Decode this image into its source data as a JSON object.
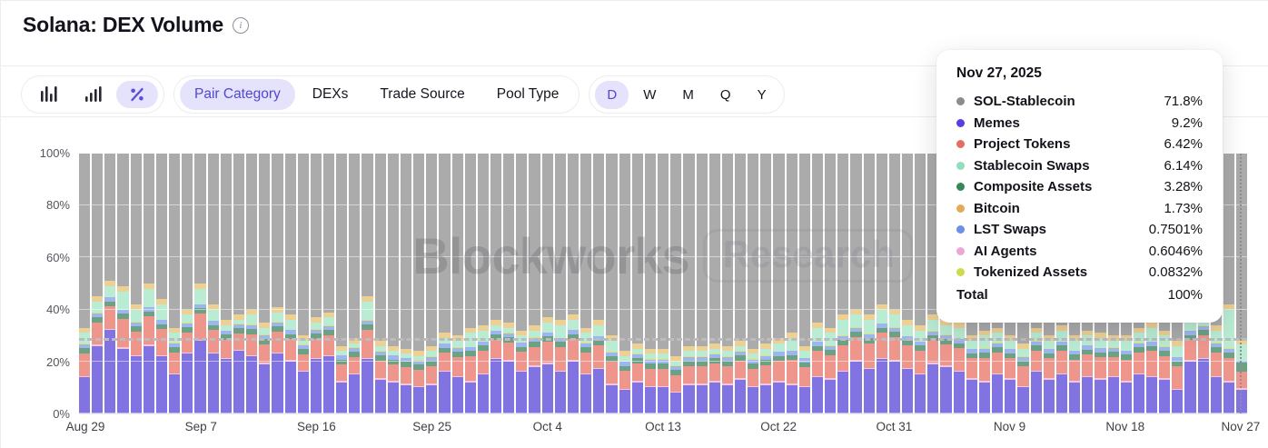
{
  "header": {
    "title": "Solana: DEX Volume"
  },
  "icons": {
    "info_glyph": "i"
  },
  "toolbar": {
    "chart_type_buttons": [
      {
        "name": "bar-chart-icon",
        "selected": false
      },
      {
        "name": "ascending-bar-chart-icon",
        "selected": false
      },
      {
        "name": "percent-icon",
        "selected": true
      }
    ],
    "category_tabs": [
      {
        "label": "Pair Category",
        "selected": true
      },
      {
        "label": "DEXs",
        "selected": false
      },
      {
        "label": "Trade Source",
        "selected": false
      },
      {
        "label": "Pool Type",
        "selected": false
      }
    ],
    "range_tabs": [
      {
        "label": "D",
        "selected": true
      },
      {
        "label": "W",
        "selected": false
      },
      {
        "label": "M",
        "selected": false
      },
      {
        "label": "Q",
        "selected": false
      },
      {
        "label": "Y",
        "selected": false
      }
    ]
  },
  "watermark": {
    "brand": "Blockworks",
    "suffix": "Research"
  },
  "tooltip": {
    "date": "Nov 27, 2025",
    "rows": [
      {
        "label": "SOL-Stablecoin",
        "value": "71.8%",
        "color": "#8c8c8c"
      },
      {
        "label": "Memes",
        "value": "9.2%",
        "color": "#5b3de2"
      },
      {
        "label": "Project Tokens",
        "value": "6.42%",
        "color": "#e56e60"
      },
      {
        "label": "Stablecoin Swaps",
        "value": "6.14%",
        "color": "#8fe0ba"
      },
      {
        "label": "Composite Assets",
        "value": "3.28%",
        "color": "#378859"
      },
      {
        "label": "Bitcoin",
        "value": "1.73%",
        "color": "#e3ab55"
      },
      {
        "label": "LST Swaps",
        "value": "0.7501%",
        "color": "#6b90e8"
      },
      {
        "label": "AI Agents",
        "value": "0.6046%",
        "color": "#eaa8d4"
      },
      {
        "label": "Tokenized Assets",
        "value": "0.0832%",
        "color": "#ccdb4c"
      }
    ],
    "total_label": "Total",
    "total_value": "100%"
  },
  "chart_data": {
    "type": "bar",
    "stacked": true,
    "percent_normalized": true,
    "title": "Solana: DEX Volume — share by Pair Category (daily)",
    "ylim": [
      0,
      100
    ],
    "y_ticks": [
      "100%",
      "80%",
      "60%",
      "40%",
      "20%",
      "0%"
    ],
    "x_ticks": [
      "Aug 29",
      "Sep 7",
      "Sep 16",
      "Sep 25",
      "Oct 4",
      "Oct 13",
      "Oct 22",
      "Oct 31",
      "Nov 9",
      "Nov 18",
      "Nov 27"
    ],
    "x_tick_bar_indices": [
      0,
      9,
      18,
      27,
      36,
      45,
      54,
      63,
      72,
      81,
      90
    ],
    "average_reference_line_pct": 28,
    "grid": true,
    "legend_position": "tooltip",
    "series": [
      {
        "name": "Memes",
        "bar_color": "#8273e3",
        "legend_color": "#5b3de2"
      },
      {
        "name": "AI Agents",
        "bar_color": "#f3c6de",
        "legend_color": "#eaa8d4"
      },
      {
        "name": "Project Tokens",
        "bar_color": "#ef968c",
        "legend_color": "#e56e60"
      },
      {
        "name": "Composite Assets",
        "bar_color": "#6ba284",
        "legend_color": "#378859"
      },
      {
        "name": "LST Swaps",
        "bar_color": "#9fb5ee",
        "legend_color": "#6b90e8"
      },
      {
        "name": "Tokenized Assets",
        "bar_color": "#dae374",
        "legend_color": "#ccdb4c"
      },
      {
        "name": "Stablecoin Swaps",
        "bar_color": "#baecd3",
        "legend_color": "#8fe0ba"
      },
      {
        "name": "Bitcoin",
        "bar_color": "#edd094",
        "legend_color": "#e3ab55"
      },
      {
        "name": "SOL-Stablecoin",
        "bar_color": "#ababab",
        "legend_color": "#8c8c8c"
      }
    ],
    "bars_value_order": [
      "Memes",
      "AI Agents",
      "Project Tokens",
      "Composite Assets",
      "LST Swaps",
      "Tokenized Assets",
      "Stablecoin Swaps",
      "Bitcoin",
      "SOL-Stablecoin"
    ],
    "bars": [
      [
        14,
        0.5,
        8.6,
        2,
        1.5,
        0.2,
        4.2,
        2,
        67
      ],
      [
        26,
        0.5,
        8.6,
        2,
        1.5,
        0.2,
        4.2,
        2,
        55
      ],
      [
        32,
        0.5,
        8.6,
        2,
        1.5,
        0.2,
        4.2,
        2,
        49
      ],
      [
        25,
        0.5,
        10.8,
        2,
        1.5,
        0.2,
        7,
        2,
        51
      ],
      [
        22,
        0.5,
        9,
        2,
        1.5,
        0.2,
        4.8,
        2,
        58
      ],
      [
        26,
        0.5,
        10.8,
        2,
        1.5,
        0.2,
        7,
        2,
        50
      ],
      [
        22,
        0.5,
        9.9,
        2,
        1.5,
        0.2,
        5.9,
        2,
        56
      ],
      [
        15,
        0.5,
        8.1,
        2,
        1.5,
        0.2,
        3.7,
        2,
        67
      ],
      [
        23,
        0.5,
        7.7,
        2,
        1.5,
        0.2,
        3.1,
        2,
        60
      ],
      [
        28,
        0.5,
        9.9,
        2,
        1.5,
        0.2,
        5.9,
        2,
        50
      ],
      [
        23,
        0.5,
        8.6,
        2,
        1.5,
        0.2,
        4.2,
        2,
        58
      ],
      [
        21,
        0.5,
        6.8,
        2,
        1.5,
        0.2,
        2,
        2,
        64
      ],
      [
        24,
        0.5,
        6.3,
        2,
        1.5,
        0.2,
        1.5,
        2,
        62
      ],
      [
        22,
        0.5,
        8.1,
        2,
        1.5,
        0.2,
        3.7,
        2,
        60
      ],
      [
        19,
        0.5,
        7.2,
        2,
        1.5,
        0.2,
        2.6,
        2,
        65
      ],
      [
        23,
        0.5,
        8.1,
        2,
        1.5,
        0.2,
        3.7,
        2,
        59
      ],
      [
        20,
        0.5,
        8.1,
        2,
        1.5,
        0.2,
        3.7,
        2,
        62
      ],
      [
        16,
        0.5,
        6.3,
        2,
        1.5,
        0.2,
        1.5,
        2,
        70
      ],
      [
        21,
        0.5,
        7.2,
        2,
        1.5,
        0.2,
        2.6,
        2,
        63
      ],
      [
        22,
        0.5,
        7.7,
        2,
        1.5,
        0.2,
        3.1,
        2,
        61
      ],
      [
        12,
        0.5,
        6.3,
        2,
        1.5,
        0.2,
        1.5,
        2,
        74
      ],
      [
        15,
        0.5,
        6.3,
        2,
        1.5,
        0.2,
        1.5,
        2,
        71
      ],
      [
        21,
        0.5,
        10.8,
        2,
        1.5,
        0.2,
        7,
        2,
        55
      ],
      [
        13,
        0.5,
        6.8,
        2,
        1.5,
        0.2,
        2,
        2,
        72
      ],
      [
        12,
        0.5,
        6.3,
        2,
        1.5,
        0.2,
        1.5,
        2,
        74
      ],
      [
        11,
        0.5,
        6.3,
        2,
        1.5,
        0.2,
        1.5,
        2,
        75
      ],
      [
        10,
        0.5,
        6.3,
        2,
        1.5,
        0.2,
        1.5,
        2,
        76
      ],
      [
        11,
        0.5,
        6.8,
        2,
        1.5,
        0.2,
        2,
        2,
        74
      ],
      [
        16,
        0.5,
        6.8,
        2,
        1.5,
        0.2,
        2,
        2,
        69
      ],
      [
        14,
        0.5,
        7.2,
        2,
        1.5,
        0.2,
        2.6,
        2,
        70
      ],
      [
        12,
        0.5,
        9.5,
        2,
        1.5,
        0.2,
        5.3,
        2,
        67
      ],
      [
        15,
        0.5,
        8.6,
        2,
        1.5,
        0.2,
        4.2,
        2,
        66
      ],
      [
        21,
        0.5,
        6.8,
        2,
        1.5,
        0.2,
        2,
        2,
        64
      ],
      [
        20,
        0.5,
        6.8,
        2,
        1.5,
        0.2,
        2,
        2,
        65
      ],
      [
        16,
        0.5,
        7.2,
        2,
        1.5,
        0.2,
        2.6,
        2,
        68
      ],
      [
        18,
        0.5,
        7.2,
        2,
        1.5,
        0.2,
        2.6,
        2,
        66
      ],
      [
        19,
        0.5,
        8.1,
        2,
        1.5,
        0.2,
        3.7,
        2,
        63
      ],
      [
        16,
        0.5,
        9,
        2,
        1.5,
        0.2,
        4.8,
        2,
        64
      ],
      [
        20,
        0.5,
        8.1,
        2,
        1.5,
        0.2,
        3.7,
        2,
        62
      ],
      [
        15,
        0.5,
        8.1,
        2,
        1.5,
        0.2,
        3.7,
        2,
        67
      ],
      [
        17,
        0.5,
        8.6,
        2,
        1.5,
        0.2,
        4.2,
        2,
        64
      ],
      [
        11,
        0.5,
        8.6,
        2,
        1.5,
        0.2,
        4.2,
        2,
        70
      ],
      [
        9,
        0.5,
        6.8,
        2,
        1.5,
        0.2,
        2,
        2,
        76
      ],
      [
        12,
        0.5,
        6.8,
        2,
        1.5,
        0.2,
        2,
        2,
        73
      ],
      [
        10,
        0.5,
        6.8,
        2,
        1.5,
        0.2,
        2,
        2,
        75
      ],
      [
        10,
        0.5,
        6.8,
        2,
        1.5,
        0.2,
        2,
        2,
        75
      ],
      [
        8,
        0.5,
        6.3,
        2,
        1.5,
        0.2,
        1.5,
        2,
        78
      ],
      [
        11,
        0.5,
        6.8,
        2,
        1.5,
        0.2,
        2,
        2,
        74
      ],
      [
        11,
        0.5,
        6.8,
        2,
        1.5,
        0.2,
        2,
        2,
        74
      ],
      [
        12,
        0.5,
        6.8,
        2,
        1.5,
        0.2,
        2,
        2,
        73
      ],
      [
        11,
        0.5,
        6.8,
        2,
        1.5,
        0.2,
        2,
        2,
        74
      ],
      [
        13,
        0.5,
        6.8,
        2,
        1.5,
        0.2,
        2,
        2,
        72
      ],
      [
        10,
        0.5,
        6.8,
        2,
        1.5,
        0.2,
        2,
        2,
        75
      ],
      [
        11,
        0.5,
        7.2,
        2,
        1.5,
        0.2,
        2.6,
        2,
        73
      ],
      [
        12,
        0.5,
        7.7,
        2,
        1.5,
        0.2,
        3.1,
        2,
        71
      ],
      [
        11,
        0.5,
        9,
        2,
        1.5,
        0.2,
        4.8,
        2,
        69
      ],
      [
        10,
        0.5,
        7.2,
        2,
        1.5,
        0.2,
        2.6,
        2,
        74
      ],
      [
        14,
        0.5,
        9.5,
        2,
        1.5,
        0.2,
        5.3,
        2,
        65
      ],
      [
        13,
        0.5,
        9,
        2,
        1.5,
        0.2,
        4.8,
        2,
        67
      ],
      [
        16,
        0.5,
        9.9,
        2,
        1.5,
        0.2,
        5.9,
        2,
        62
      ],
      [
        20,
        0.5,
        9,
        2,
        1.5,
        0.2,
        4.8,
        2,
        60
      ],
      [
        17,
        0.5,
        9.5,
        2,
        1.5,
        0.2,
        5.3,
        2,
        62
      ],
      [
        21,
        0.5,
        9.5,
        2,
        1.5,
        0.2,
        5.3,
        2,
        58
      ],
      [
        20,
        0.5,
        9,
        2,
        1.5,
        0.2,
        4.8,
        2,
        60
      ],
      [
        17,
        0.5,
        8.6,
        2,
        1.5,
        0.2,
        4.2,
        2,
        64
      ],
      [
        15,
        0.5,
        8.6,
        2,
        1.5,
        0.2,
        4.2,
        2,
        66
      ],
      [
        19,
        0.5,
        8.6,
        2,
        1.5,
        0.2,
        4.2,
        2,
        62
      ],
      [
        18,
        0.5,
        8.1,
        2,
        1.5,
        0.2,
        3.7,
        2,
        64
      ],
      [
        16,
        0.5,
        8.6,
        2,
        1.5,
        0.2,
        4.2,
        2,
        65
      ],
      [
        13,
        0.5,
        7.7,
        2,
        1.5,
        0.2,
        3.1,
        2,
        70
      ],
      [
        12,
        0.5,
        9,
        2,
        1.5,
        0.2,
        4.8,
        2,
        68
      ],
      [
        15,
        0.5,
        8.1,
        2,
        1.5,
        0.2,
        3.7,
        2,
        67
      ],
      [
        13,
        0.5,
        7.7,
        2,
        1.5,
        0.2,
        3.1,
        2,
        70
      ],
      [
        10,
        0.5,
        7.7,
        2,
        1.5,
        0.2,
        3.1,
        2,
        73
      ],
      [
        16,
        0.5,
        7.7,
        2,
        1.5,
        0.2,
        3.1,
        2,
        67
      ],
      [
        13,
        0.5,
        7.7,
        2,
        1.5,
        0.2,
        3.1,
        2,
        70
      ],
      [
        15,
        0.5,
        8.6,
        2,
        1.5,
        0.2,
        4.2,
        2,
        66
      ],
      [
        12,
        0.5,
        8.1,
        2,
        1.5,
        0.2,
        3.7,
        2,
        70
      ],
      [
        14,
        0.5,
        8.1,
        2,
        1.5,
        0.2,
        3.7,
        2,
        68
      ],
      [
        13,
        0.5,
        8.1,
        2,
        1.5,
        0.2,
        3.7,
        2,
        69
      ],
      [
        14,
        0.5,
        7.2,
        2,
        1.5,
        0.2,
        2.6,
        2,
        70
      ],
      [
        12,
        0.5,
        8.1,
        2,
        1.5,
        0.2,
        3.7,
        2,
        70
      ],
      [
        15,
        0.5,
        8.1,
        2,
        1.5,
        0.2,
        3.7,
        2,
        67
      ],
      [
        14,
        0.5,
        9.5,
        2,
        1.5,
        0.2,
        5.3,
        2,
        65
      ],
      [
        13,
        0.5,
        8.6,
        2,
        1.5,
        0.2,
        4.2,
        2,
        68
      ],
      [
        9,
        0.5,
        8.6,
        2,
        1.5,
        0.2,
        4.2,
        2,
        72
      ],
      [
        20,
        0.5,
        7.7,
        2,
        1.5,
        0.2,
        3.1,
        2,
        63
      ],
      [
        21,
        0.5,
        8.6,
        2,
        1.5,
        0.2,
        4.2,
        2,
        60
      ],
      [
        14,
        0.5,
        9,
        2,
        1.5,
        0.2,
        4.8,
        2,
        66
      ],
      [
        12,
        0.5,
        9,
        2,
        1.5,
        0.2,
        14.8,
        2,
        58
      ],
      [
        9.2,
        0.6,
        6.42,
        3.28,
        0.75,
        0.08,
        6.14,
        1.73,
        71.8
      ]
    ]
  }
}
